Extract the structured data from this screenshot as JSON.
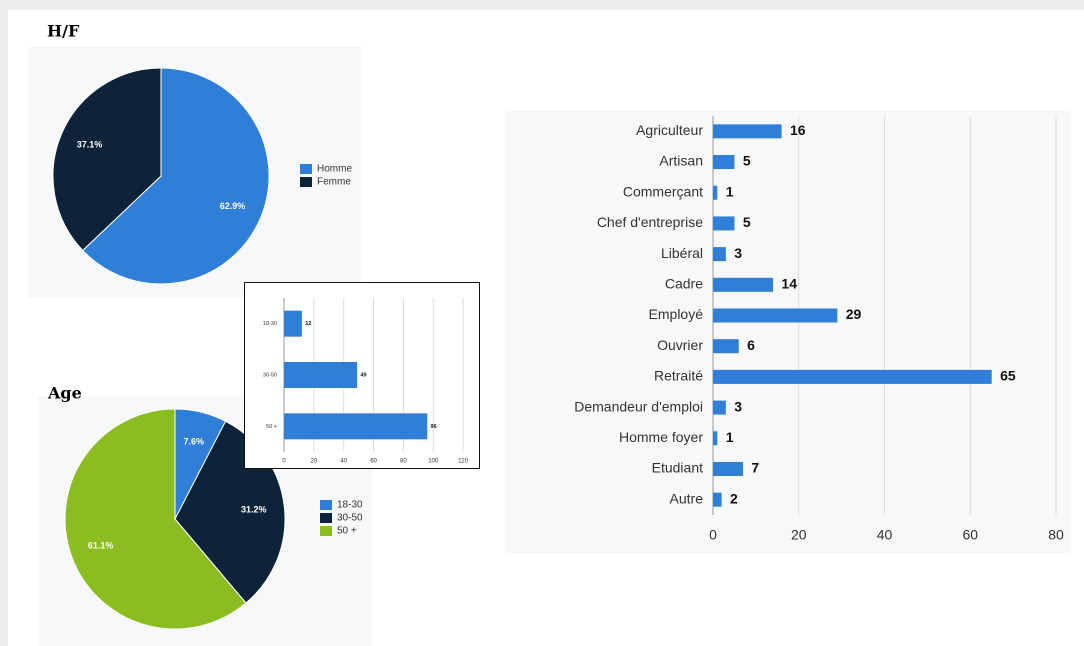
{
  "chart_data": [
    {
      "type": "pie",
      "title": "H/F",
      "categories": [
        "Homme",
        "Femme"
      ],
      "values": [
        62.9,
        37.1
      ],
      "value_labels": [
        "62.9%",
        "37.1%"
      ],
      "colors": [
        "#2f7ed8",
        "#0d233a"
      ],
      "legend": "right"
    },
    {
      "type": "pie",
      "title": "Age",
      "categories": [
        "18-30",
        "30-50",
        "50 +"
      ],
      "values": [
        7.6,
        31.2,
        61.1
      ],
      "value_labels": [
        "7.6%",
        "31.2%",
        "61.1%"
      ],
      "colors": [
        "#2f7ed8",
        "#0d233a",
        "#8bbc21"
      ],
      "legend": "right"
    },
    {
      "type": "hbar",
      "categories": [
        "18-30",
        "30-50",
        "50 +"
      ],
      "values": [
        12,
        49,
        96
      ],
      "color": "#2f7ed8",
      "xlim": [
        0,
        130
      ],
      "xticks": [
        0,
        20,
        40,
        60,
        80,
        100,
        120
      ],
      "grid": true
    },
    {
      "type": "hbar",
      "categories": [
        "Agriculteur",
        "Artisan",
        "Commerçant",
        "Chef d'entreprise",
        "Libéral",
        "Cadre",
        "Employé",
        "Ouvrier",
        "Retraité",
        "Demandeur d'emploi",
        "Homme foyer",
        "Etudiant",
        "Autre"
      ],
      "values": [
        16,
        5,
        1,
        5,
        3,
        14,
        29,
        6,
        65,
        3,
        1,
        7,
        2
      ],
      "color": "#2f7ed8",
      "xlim": [
        0,
        80
      ],
      "xticks": [
        0,
        20,
        40,
        60,
        80
      ],
      "grid": true
    }
  ]
}
